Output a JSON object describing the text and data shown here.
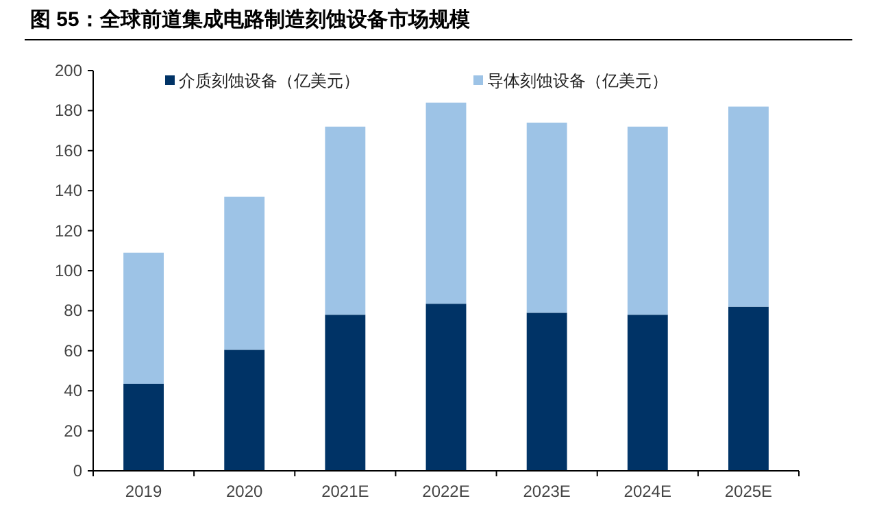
{
  "chart_data": {
    "type": "bar",
    "title": "图 55：全球前道集成电路制造刻蚀设备市场规模",
    "categories": [
      "2019",
      "2020",
      "2021E",
      "2022E",
      "2023E",
      "2024E",
      "2025E"
    ],
    "stacked": true,
    "series": [
      {
        "name": "介质刻蚀设备（亿美元）",
        "color": "#003366",
        "values": [
          43.5,
          60.5,
          78,
          83.5,
          79,
          78,
          82
        ]
      },
      {
        "name": "导体刻蚀设备（亿美元）",
        "color": "#9dc3e6",
        "values": [
          65.5,
          76.5,
          94,
          100.5,
          95,
          94,
          100
        ]
      }
    ],
    "ylim": [
      0,
      200
    ],
    "yticks": [
      0,
      20,
      40,
      60,
      80,
      100,
      120,
      140,
      160,
      180,
      200
    ],
    "legend": "top"
  }
}
